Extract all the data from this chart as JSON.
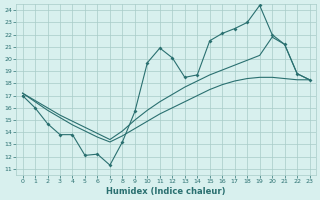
{
  "xlabel": "Humidex (Indice chaleur)",
  "background_color": "#d8f0ee",
  "grid_color": "#a8ccc8",
  "line_color": "#2a7070",
  "xlim": [
    -0.5,
    23.5
  ],
  "ylim": [
    10.5,
    24.5
  ],
  "xticks": [
    0,
    1,
    2,
    3,
    4,
    5,
    6,
    7,
    8,
    9,
    10,
    11,
    12,
    13,
    14,
    15,
    16,
    17,
    18,
    19,
    20,
    21,
    22,
    23
  ],
  "yticks": [
    11,
    12,
    13,
    14,
    15,
    16,
    17,
    18,
    19,
    20,
    21,
    22,
    23,
    24
  ],
  "line1_x": [
    0,
    1,
    2,
    3,
    4,
    5,
    6,
    7,
    8,
    9,
    10,
    11,
    12,
    13,
    14,
    15,
    16,
    17,
    18,
    19,
    20,
    21,
    22,
    23
  ],
  "line1_y": [
    17.0,
    16.0,
    14.7,
    13.8,
    13.8,
    12.1,
    12.2,
    11.3,
    13.2,
    15.7,
    19.7,
    20.9,
    20.1,
    18.5,
    18.7,
    21.5,
    22.1,
    22.5,
    23.0,
    24.4,
    22.0,
    21.2,
    18.8,
    18.3
  ],
  "line2_x": [
    0,
    1,
    2,
    3,
    4,
    5,
    6,
    7,
    8,
    9,
    10,
    11,
    12,
    13,
    14,
    15,
    16,
    17,
    18,
    19,
    20,
    21,
    22,
    23
  ],
  "line2_y": [
    17.2,
    16.5,
    15.8,
    15.2,
    14.6,
    14.1,
    13.6,
    13.2,
    13.7,
    14.3,
    14.9,
    15.5,
    16.0,
    16.5,
    17.0,
    17.5,
    17.9,
    18.2,
    18.4,
    18.5,
    18.5,
    18.4,
    18.3,
    18.3
  ],
  "line3_x": [
    0,
    1,
    2,
    3,
    4,
    5,
    6,
    7,
    8,
    9,
    10,
    11,
    12,
    13,
    14,
    15,
    16,
    17,
    18,
    19,
    20,
    21,
    22,
    23
  ],
  "line3_y": [
    17.2,
    16.6,
    16.0,
    15.4,
    14.9,
    14.4,
    13.9,
    13.4,
    14.1,
    15.0,
    15.8,
    16.5,
    17.1,
    17.7,
    18.2,
    18.7,
    19.1,
    19.5,
    19.9,
    20.3,
    21.8,
    21.2,
    18.8,
    18.3
  ]
}
